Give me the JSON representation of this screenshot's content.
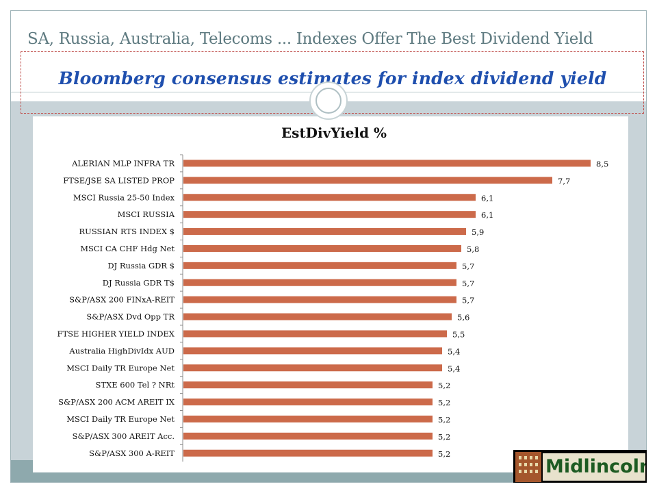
{
  "slide": {
    "title": "SA, Russia, Australia, Telecoms ... Indexes Offer The Best Dividend Yield",
    "subtitle": "Bloomberg consensus estimates for index dividend yield"
  },
  "logo": {
    "text": "Midlincoln"
  },
  "colors": {
    "bar": "#cc6a4a",
    "content_bg": "#c8d3d8",
    "footer_band": "#8ea9ad",
    "subtitle": "#1f4fae"
  },
  "chart_data": {
    "type": "bar",
    "orientation": "horizontal",
    "title": "EstDivYield %",
    "xlabel": "",
    "ylabel": "",
    "xlim": [
      0,
      9.5
    ],
    "grid": false,
    "legend": "none",
    "categories": [
      "ALERIAN MLP INFRA TR",
      "FTSE/JSE SA LISTED PROP",
      "MSCI Russia 25-50 Index",
      "MSCI RUSSIA",
      "RUSSIAN RTS INDEX $",
      "MSCI CA CHF Hdg Net",
      "DJ Russia GDR $",
      "DJ Russia GDR T$",
      "S&P/ASX 200 FINxA-REIT",
      "S&P/ASX Dvd Opp TR",
      "FTSE HIGHER YIELD INDEX",
      "Australia HighDivIdx AUD",
      "MSCI Daily TR Europe Net",
      "STXE 600 Tel ? NRt",
      "S&P/ASX 200 ACM AREIT IX",
      "MSCI Daily TR Europe Net",
      "S&P/ASX 300 AREIT Acc.",
      "S&P/ASX 300 A-REIT"
    ],
    "values": [
      8.5,
      7.7,
      6.1,
      6.1,
      5.9,
      5.8,
      5.7,
      5.7,
      5.7,
      5.6,
      5.5,
      5.4,
      5.4,
      5.2,
      5.2,
      5.2,
      5.2,
      5.2
    ],
    "value_labels": [
      "8,5",
      "7,7",
      "6,1",
      "6,1",
      "5,9",
      "5,8",
      "5,7",
      "5,7",
      "5,7",
      "5,6",
      "5,5",
      "5,4",
      "5,4",
      "5,2",
      "5,2",
      "5,2",
      "5,2",
      "5,2"
    ]
  }
}
